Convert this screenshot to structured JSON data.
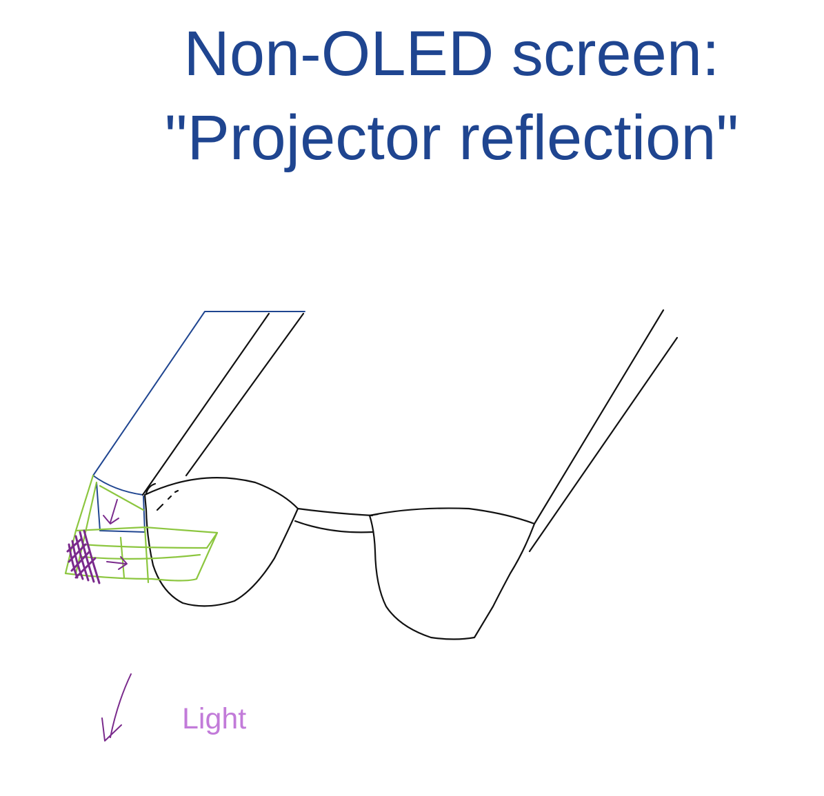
{
  "title": {
    "line1": "Non-OLED screen:",
    "line2": "\"Projector reflection\""
  },
  "light_label": "Light",
  "colors": {
    "title": "#1f4590",
    "glasses_outline": "#111111",
    "projector_outline": "#1f4590",
    "light_path": "#8cc63f",
    "light_arrow": "#7a2a8c",
    "light_label": "#c27bd9"
  }
}
